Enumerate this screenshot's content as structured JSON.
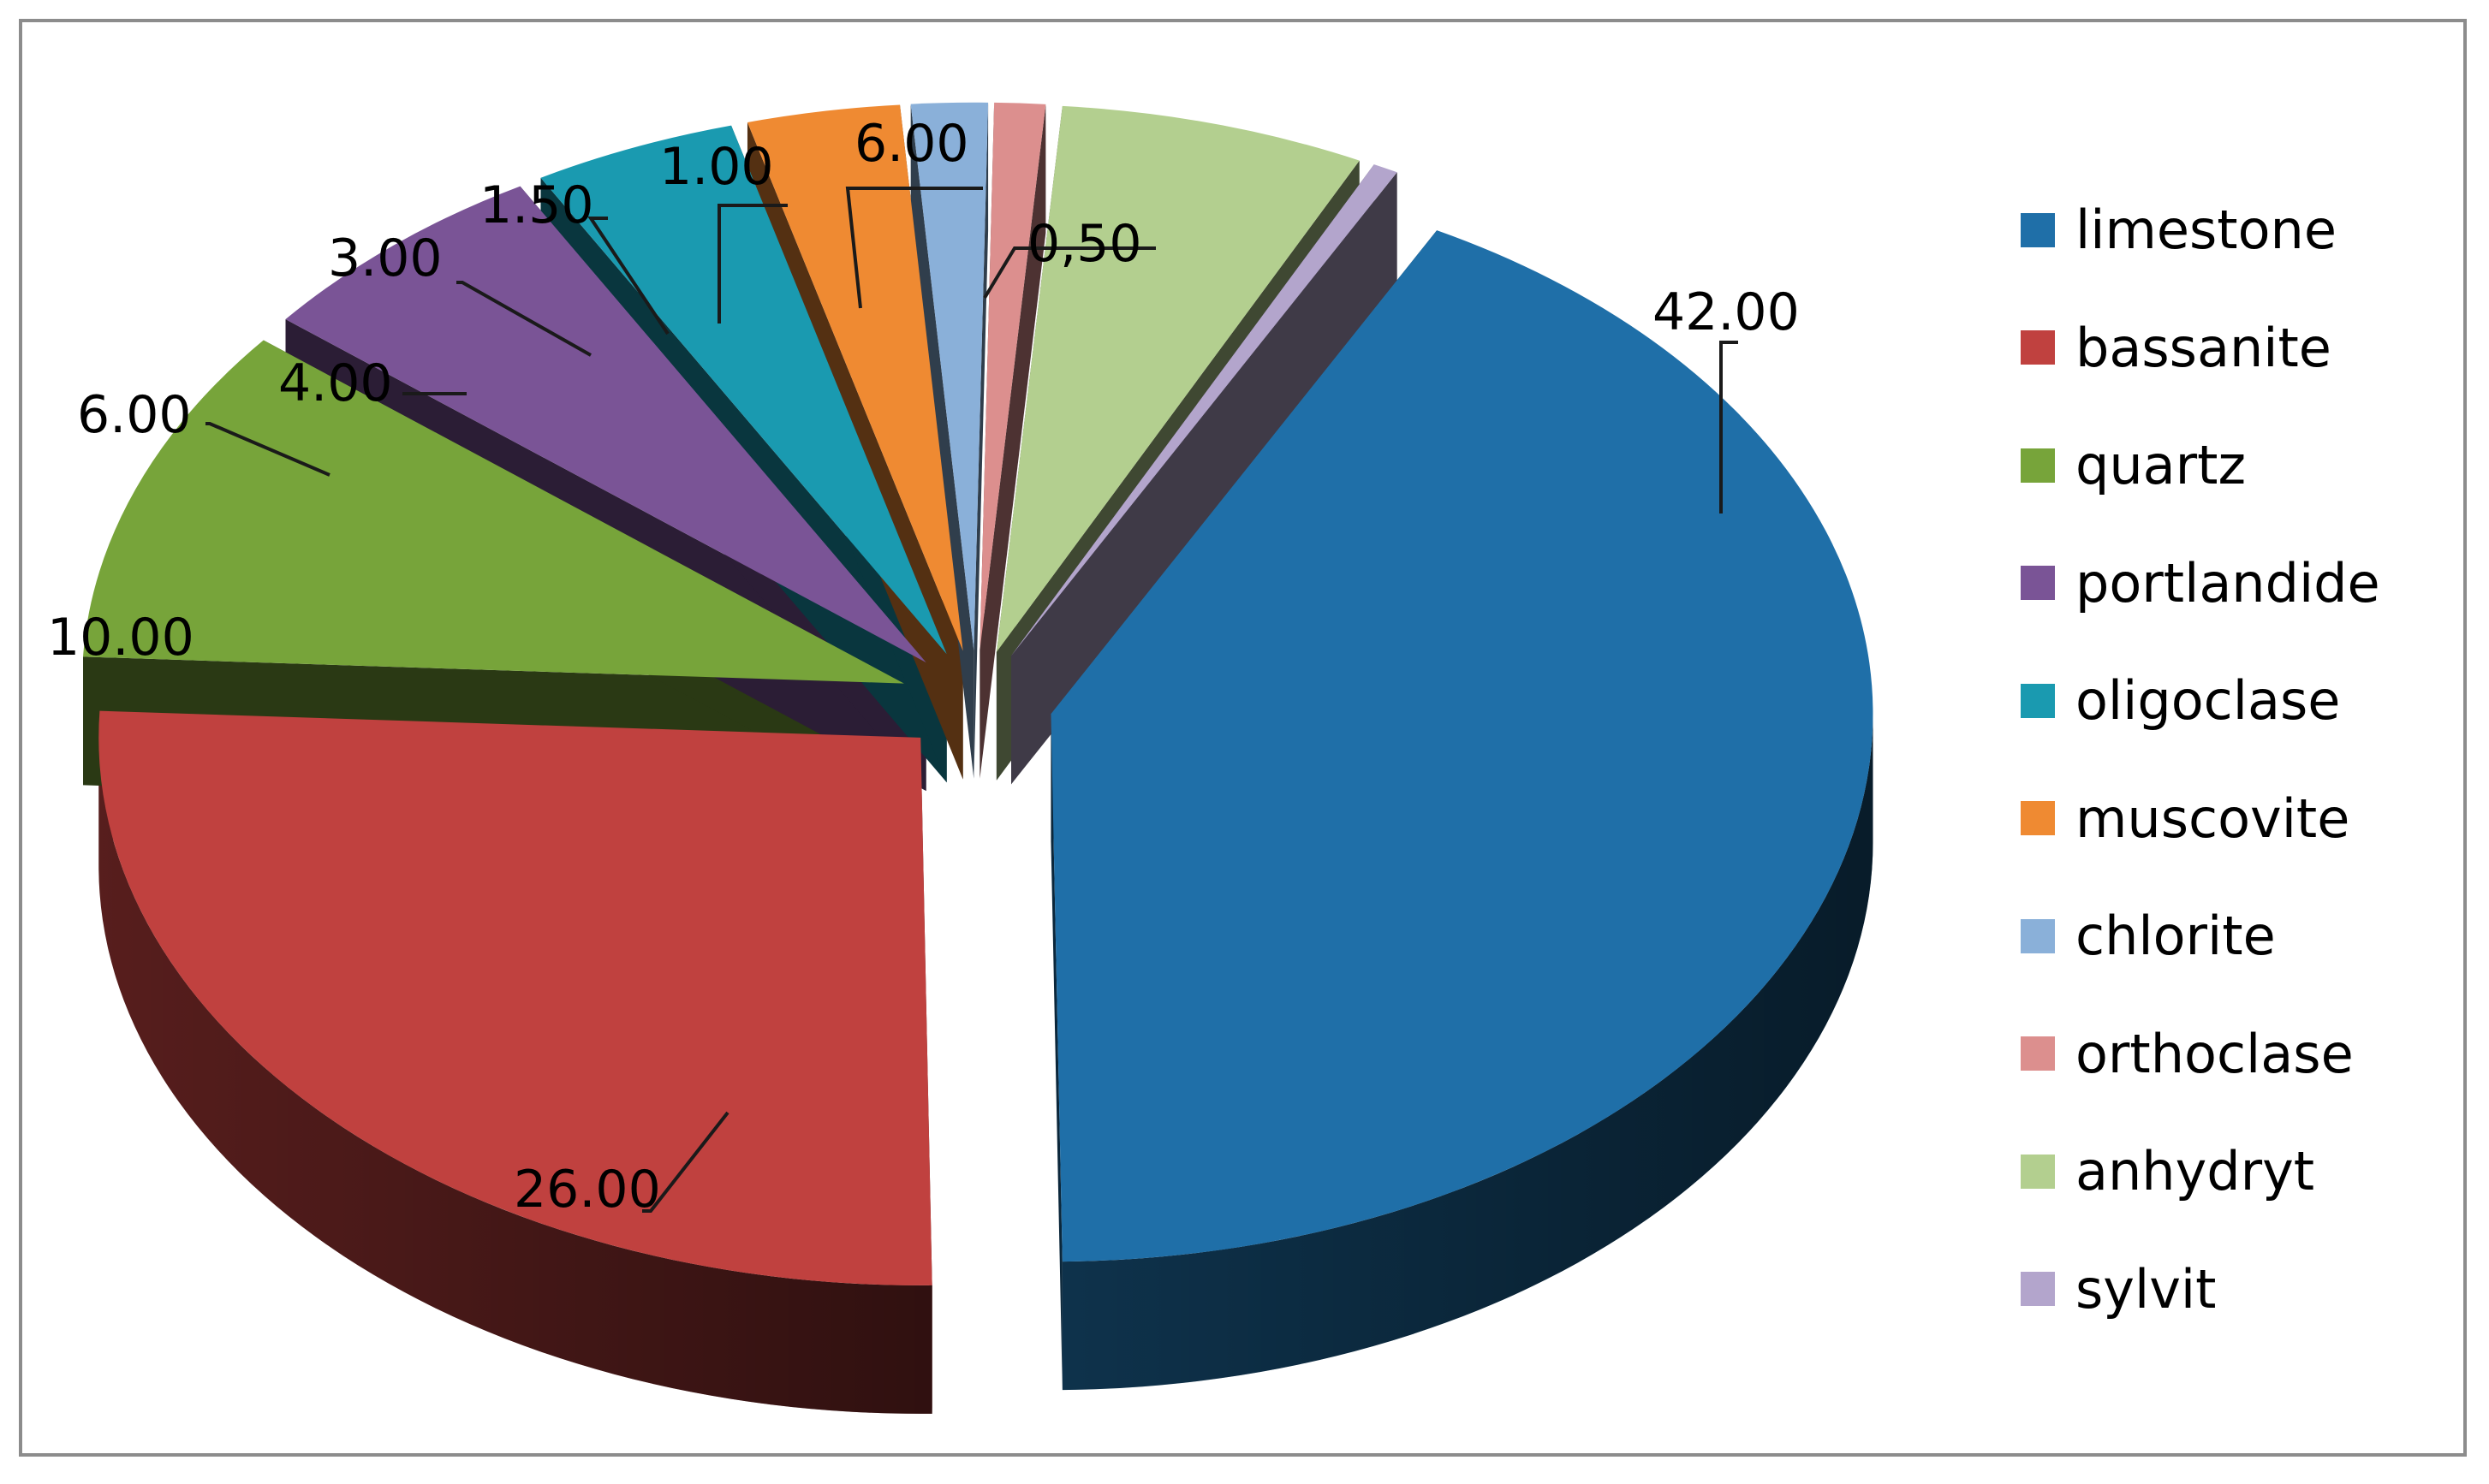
{
  "chart_data": {
    "type": "pie",
    "style": "3d-exploded",
    "title": "",
    "legend_position": "right",
    "slices": [
      {
        "name": "limestone",
        "value": 42.0,
        "label": "42.00",
        "color": "#1f6fa8"
      },
      {
        "name": "bassanite",
        "value": 26.0,
        "label": "26.00",
        "color": "#c0413f"
      },
      {
        "name": "quartz",
        "value": 10.0,
        "label": "10.00",
        "color": "#77a43a"
      },
      {
        "name": "portlandide",
        "value": 6.0,
        "label": "6.00",
        "color": "#7a5496"
      },
      {
        "name": "oligoclase",
        "value": 4.0,
        "label": "4.00",
        "color": "#1a9ab0"
      },
      {
        "name": "muscovite",
        "value": 3.0,
        "label": "3.00",
        "color": "#ef8a32"
      },
      {
        "name": "chlorite",
        "value": 1.5,
        "label": "1.50",
        "color": "#8ab0d9"
      },
      {
        "name": "orthoclase",
        "value": 1.0,
        "label": "1.00",
        "color": "#dc8f8e"
      },
      {
        "name": "anhydryt",
        "value": 6.0,
        "label": "6.00",
        "color": "#b3cf8f"
      },
      {
        "name": "sylvit",
        "value": 0.5,
        "label": "0,50",
        "color": "#b3a5cc"
      }
    ]
  }
}
